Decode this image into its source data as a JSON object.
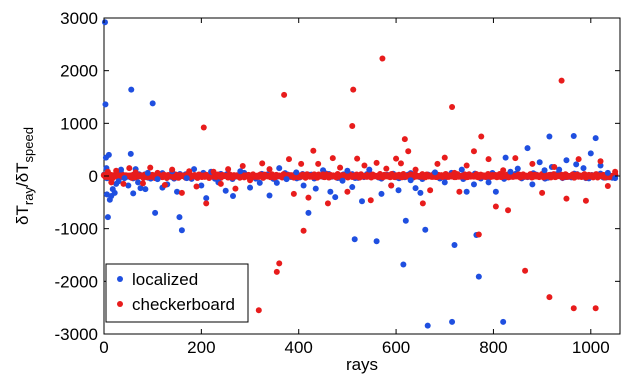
{
  "chart_data": {
    "type": "scatter",
    "title": "",
    "xlabel": "rays",
    "ylabel": "δT_ray/δT_speed",
    "xlim": [
      0,
      1060
    ],
    "ylim": [
      -3000,
      3000
    ],
    "xticks": [
      0,
      200,
      400,
      600,
      800,
      1000
    ],
    "yticks": [
      -3000,
      -2000,
      -1000,
      0,
      1000,
      2000,
      3000
    ],
    "grid": false,
    "legend": {
      "location": "bottom-left"
    },
    "series": [
      {
        "name": "localized",
        "color": "#1f4fe0",
        "points": [
          [
            2,
            2920
          ],
          [
            3,
            1360
          ],
          [
            4,
            350
          ],
          [
            5,
            150
          ],
          [
            6,
            -350
          ],
          [
            8,
            -780
          ],
          [
            10,
            400
          ],
          [
            12,
            -450
          ],
          [
            15,
            -380
          ],
          [
            18,
            -250
          ],
          [
            22,
            -320
          ],
          [
            25,
            -150
          ],
          [
            30,
            -100
          ],
          [
            35,
            120
          ],
          [
            42,
            -40
          ],
          [
            50,
            -180
          ],
          [
            55,
            420
          ],
          [
            56,
            1640
          ],
          [
            60,
            -330
          ],
          [
            65,
            130
          ],
          [
            70,
            -120
          ],
          [
            75,
            -230
          ],
          [
            85,
            -250
          ],
          [
            90,
            60
          ],
          [
            100,
            1380
          ],
          [
            105,
            -700
          ],
          [
            110,
            -60
          ],
          [
            120,
            -220
          ],
          [
            130,
            -160
          ],
          [
            140,
            90
          ],
          [
            150,
            -300
          ],
          [
            155,
            -780
          ],
          [
            160,
            -1030
          ],
          [
            170,
            -40
          ],
          [
            185,
            130
          ],
          [
            200,
            -180
          ],
          [
            210,
            -420
          ],
          [
            220,
            80
          ],
          [
            235,
            -120
          ],
          [
            250,
            -280
          ],
          [
            265,
            -380
          ],
          [
            280,
            90
          ],
          [
            300,
            -220
          ],
          [
            320,
            -130
          ],
          [
            340,
            -370
          ],
          [
            355,
            -130
          ],
          [
            360,
            150
          ],
          [
            375,
            -60
          ],
          [
            395,
            70
          ],
          [
            410,
            -180
          ],
          [
            420,
            -700
          ],
          [
            435,
            -240
          ],
          [
            450,
            110
          ],
          [
            465,
            -300
          ],
          [
            475,
            -400
          ],
          [
            490,
            -90
          ],
          [
            500,
            100
          ],
          [
            510,
            -210
          ],
          [
            515,
            -1200
          ],
          [
            530,
            -480
          ],
          [
            545,
            120
          ],
          [
            560,
            -1240
          ],
          [
            570,
            -340
          ],
          [
            590,
            -180
          ],
          [
            605,
            -270
          ],
          [
            615,
            -1680
          ],
          [
            620,
            -850
          ],
          [
            630,
            -80
          ],
          [
            640,
            -230
          ],
          [
            650,
            -320
          ],
          [
            660,
            -1020
          ],
          [
            665,
            -2840
          ],
          [
            680,
            70
          ],
          [
            700,
            -120
          ],
          [
            715,
            -2770
          ],
          [
            720,
            -1310
          ],
          [
            735,
            120
          ],
          [
            745,
            -300
          ],
          [
            760,
            -160
          ],
          [
            765,
            -1120
          ],
          [
            770,
            -1910
          ],
          [
            790,
            -120
          ],
          [
            805,
            -300
          ],
          [
            820,
            -2770
          ],
          [
            825,
            350
          ],
          [
            835,
            80
          ],
          [
            850,
            140
          ],
          [
            870,
            530
          ],
          [
            880,
            -160
          ],
          [
            895,
            260
          ],
          [
            905,
            110
          ],
          [
            915,
            750
          ],
          [
            920,
            170
          ],
          [
            935,
            120
          ],
          [
            950,
            300
          ],
          [
            965,
            760
          ],
          [
            970,
            220
          ],
          [
            985,
            150
          ],
          [
            1000,
            430
          ],
          [
            1010,
            720
          ],
          [
            1020,
            200
          ],
          [
            1035,
            60
          ],
          [
            1050,
            -40
          ]
        ]
      },
      {
        "name": "checkerboard",
        "color": "#e81c1c",
        "points": [
          [
            8,
            80
          ],
          [
            15,
            -120
          ],
          [
            25,
            100
          ],
          [
            40,
            -150
          ],
          [
            52,
            150
          ],
          [
            65,
            70
          ],
          [
            80,
            -140
          ],
          [
            95,
            160
          ],
          [
            110,
            60
          ],
          [
            125,
            -170
          ],
          [
            140,
            120
          ],
          [
            160,
            -320
          ],
          [
            175,
            90
          ],
          [
            190,
            -200
          ],
          [
            205,
            920
          ],
          [
            210,
            -520
          ],
          [
            225,
            80
          ],
          [
            240,
            -150
          ],
          [
            255,
            130
          ],
          [
            270,
            -240
          ],
          [
            285,
            190
          ],
          [
            300,
            -80
          ],
          [
            318,
            -2550
          ],
          [
            325,
            240
          ],
          [
            340,
            130
          ],
          [
            355,
            -1820
          ],
          [
            360,
            -1660
          ],
          [
            370,
            1540
          ],
          [
            380,
            320
          ],
          [
            390,
            -340
          ],
          [
            405,
            230
          ],
          [
            410,
            -1040
          ],
          [
            420,
            -410
          ],
          [
            430,
            480
          ],
          [
            440,
            230
          ],
          [
            450,
            30
          ],
          [
            460,
            -520
          ],
          [
            470,
            340
          ],
          [
            485,
            160
          ],
          [
            500,
            -300
          ],
          [
            510,
            950
          ],
          [
            512,
            1640
          ],
          [
            520,
            330
          ],
          [
            535,
            200
          ],
          [
            548,
            -460
          ],
          [
            560,
            250
          ],
          [
            572,
            2230
          ],
          [
            580,
            140
          ],
          [
            590,
            -180
          ],
          [
            600,
            330
          ],
          [
            610,
            240
          ],
          [
            618,
            700
          ],
          [
            625,
            470
          ],
          [
            640,
            120
          ],
          [
            655,
            -520
          ],
          [
            670,
            -270
          ],
          [
            685,
            230
          ],
          [
            700,
            350
          ],
          [
            715,
            1310
          ],
          [
            720,
            60
          ],
          [
            730,
            -300
          ],
          [
            745,
            200
          ],
          [
            760,
            470
          ],
          [
            770,
            -1110
          ],
          [
            775,
            750
          ],
          [
            790,
            320
          ],
          [
            805,
            -580
          ],
          [
            820,
            110
          ],
          [
            830,
            -650
          ],
          [
            845,
            340
          ],
          [
            865,
            -1800
          ],
          [
            880,
            230
          ],
          [
            900,
            -320
          ],
          [
            915,
            -2300
          ],
          [
            925,
            170
          ],
          [
            940,
            1810
          ],
          [
            950,
            -430
          ],
          [
            965,
            -2510
          ],
          [
            975,
            320
          ],
          [
            990,
            -470
          ],
          [
            1010,
            -2510
          ],
          [
            1020,
            280
          ],
          [
            1035,
            -190
          ],
          [
            1050,
            80
          ]
        ]
      }
    ]
  }
}
